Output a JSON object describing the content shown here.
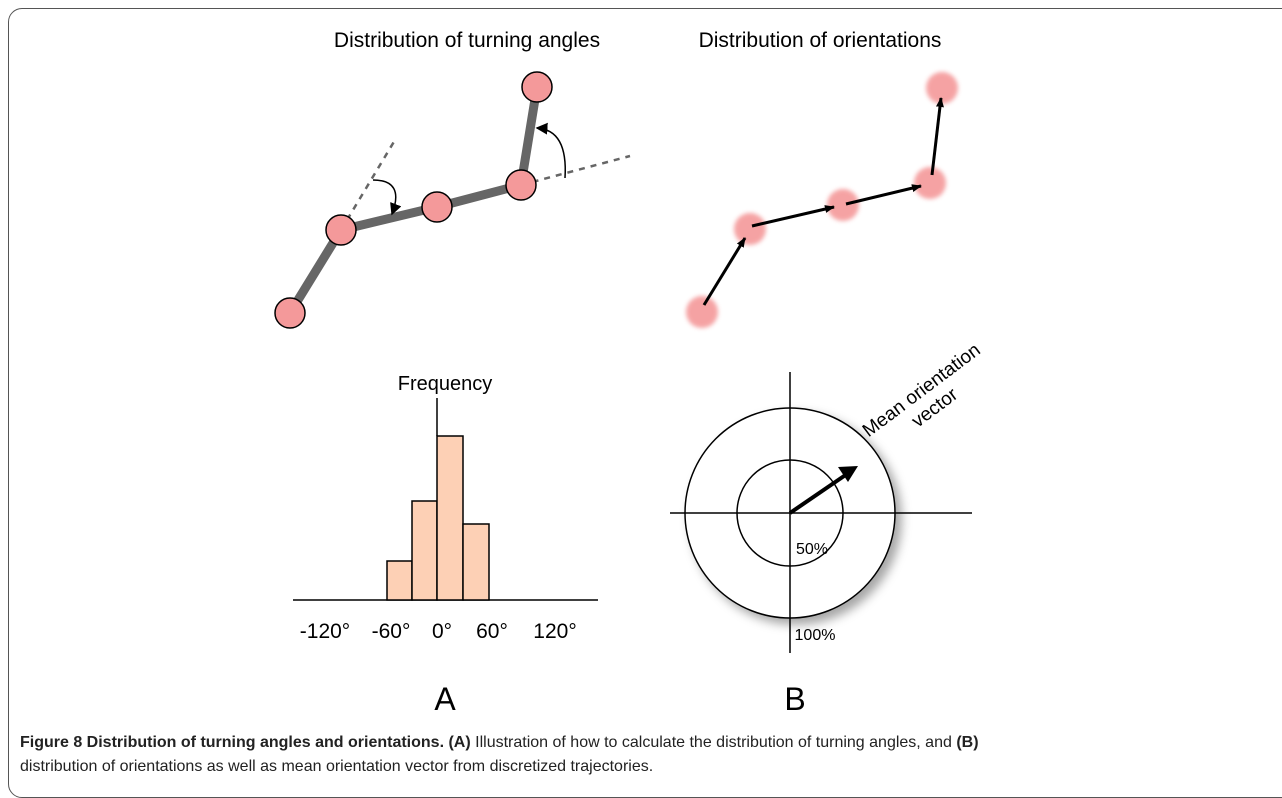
{
  "panel_a": {
    "title": "Distribution of turning angles",
    "histogram_label": "Frequency",
    "ticks": [
      "-120°",
      "-60°",
      "0°",
      "60°",
      "120°"
    ],
    "letter": "A"
  },
  "panel_b": {
    "title": "Distribution of orientations",
    "vector_label": [
      "Mean orientation",
      "vector"
    ],
    "inner_circle_label": "50%",
    "outer_circle_label": "100%",
    "letter": "B"
  },
  "caption": {
    "figure": "Figure 8 Distribution of turning angles and orientations.",
    "a_marker": "(A)",
    "a_text": "Illustration of how to calculate the distribution of turning angles, and",
    "b_marker": "(B)",
    "b_text": "distribution of orientations as well as mean orientation vector from discretized trajectories."
  }
}
